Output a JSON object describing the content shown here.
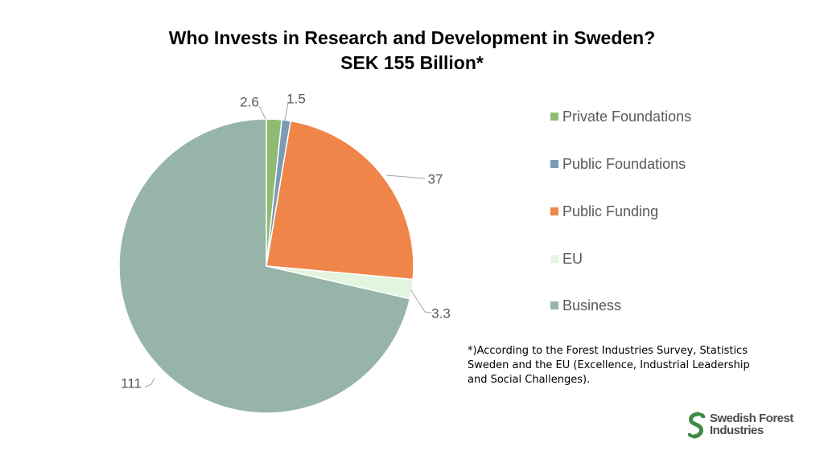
{
  "title": {
    "line1": "Who Invests in Research and Development in Sweden?",
    "line2": "SEK 155 Billion*"
  },
  "chart_data": {
    "type": "pie",
    "title": "Who Invests in Research and Development in Sweden? SEK 155 Billion*",
    "start_angle_deg": 0,
    "direction": "clockwise",
    "legend_position": "right",
    "slices": [
      {
        "name": "Private Foundations",
        "value": 2.6,
        "label": "2.6",
        "color": "#8fbc72"
      },
      {
        "name": "Public Foundations",
        "value": 1.5,
        "label": "1.5",
        "color": "#7b9bb5"
      },
      {
        "name": "Public Funding",
        "value": 37,
        "label": "37",
        "color": "#f0854a"
      },
      {
        "name": "EU",
        "value": 3.3,
        "label": "3.3",
        "color": "#e3f5de"
      },
      {
        "name": "Business",
        "value": 111,
        "label": "111",
        "color": "#96b5a8"
      }
    ]
  },
  "footnote": {
    "line1": "*)According to the Forest Industries Survey, Statistics",
    "line2": "Sweden and the EU (Excellence, Industrial Leadership",
    "line3": "and Social Challenges)."
  },
  "logo": {
    "line1": "Swedish Forest",
    "line2": "Industries",
    "icon": "leaf-s-icon",
    "color": "#3f8a46"
  }
}
